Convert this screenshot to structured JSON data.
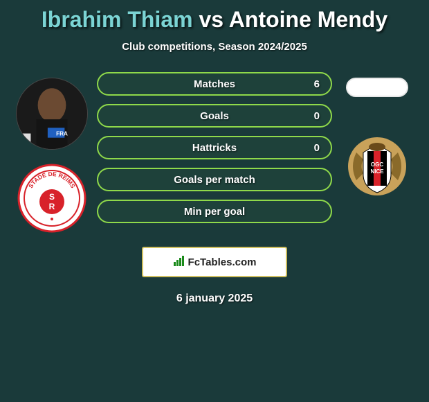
{
  "title": {
    "player1": "Ibrahim Thiam",
    "vs": "vs",
    "player2": "Antoine Mendy"
  },
  "subtitle": "Club competitions, Season 2024/2025",
  "colors": {
    "pill_border": "#8fd94a",
    "pill_bg": "rgba(40,80,60,0.35)",
    "p1_accent": "#7bd4d4",
    "p2_accent": "#ffffff",
    "background": "#1a3a3a"
  },
  "stats": [
    {
      "label": "Matches",
      "p1": "",
      "p2": "6"
    },
    {
      "label": "Goals",
      "p1": "",
      "p2": "0"
    },
    {
      "label": "Hattricks",
      "p1": "",
      "p2": "0"
    },
    {
      "label": "Goals per match",
      "p1": "",
      "p2": ""
    },
    {
      "label": "Min per goal",
      "p1": "",
      "p2": ""
    }
  ],
  "player1": {
    "name": "Ibrahim Thiam",
    "club": "Stade de Reims",
    "club_colors": {
      "primary": "#d8222a",
      "secondary": "#ffffff"
    }
  },
  "player2": {
    "name": "Antoine Mendy",
    "club": "OGC Nice",
    "club_colors": {
      "primary": "#000000",
      "secondary": "#d8222a",
      "tertiary": "#c9a25a"
    }
  },
  "attribution": "FcTables.com",
  "date": "6 january 2025"
}
